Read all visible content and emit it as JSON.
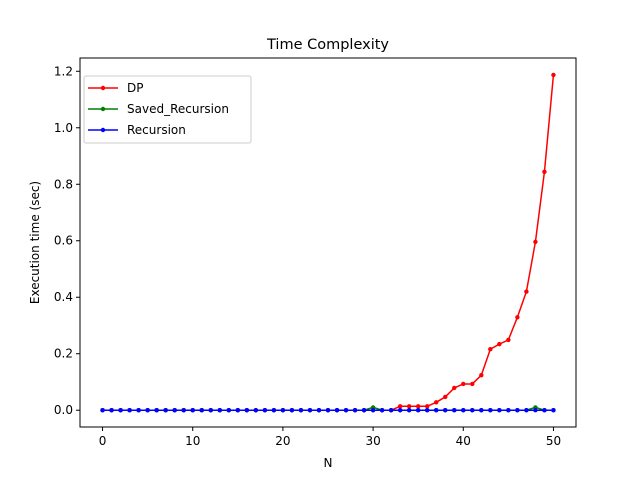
{
  "chart_data": {
    "type": "line",
    "title": "Time Complexity",
    "xlabel": "N",
    "ylabel": "Execution time (sec)",
    "xlim": [
      -2.5,
      52.5
    ],
    "ylim": [
      -0.0594,
      1.247
    ],
    "xticks": [
      0,
      10,
      20,
      30,
      40,
      50
    ],
    "xtick_labels": [
      "0",
      "10",
      "20",
      "30",
      "40",
      "50"
    ],
    "yticks": [
      0.0,
      0.2,
      0.4,
      0.6,
      0.8,
      1.0,
      1.2
    ],
    "ytick_labels": [
      "0.0",
      "0.2",
      "0.4",
      "0.6",
      "0.8",
      "1.0",
      "1.2"
    ],
    "grid": false,
    "legend_position": "upper-left",
    "x": [
      0,
      1,
      2,
      3,
      4,
      5,
      6,
      7,
      8,
      9,
      10,
      11,
      12,
      13,
      14,
      15,
      16,
      17,
      18,
      19,
      20,
      21,
      22,
      23,
      24,
      25,
      26,
      27,
      28,
      29,
      30,
      31,
      32,
      33,
      34,
      35,
      36,
      37,
      38,
      39,
      40,
      41,
      42,
      43,
      44,
      45,
      46,
      47,
      48,
      49,
      50
    ],
    "series": [
      {
        "name": "DP",
        "color": "#ff0000",
        "values": [
          0,
          0,
          0,
          0,
          0,
          0,
          0,
          0,
          0,
          0,
          0,
          0,
          0,
          0,
          0,
          0,
          0,
          0,
          0,
          0,
          0,
          0,
          0,
          0,
          0,
          0,
          0,
          0,
          0,
          0,
          0,
          0,
          0,
          0.014,
          0.014,
          0.014,
          0.014,
          0.028,
          0.047,
          0.079,
          0.093,
          0.093,
          0.124,
          0.216,
          0.234,
          0.249,
          0.329,
          0.42,
          0.596,
          0.844,
          1.187
        ]
      },
      {
        "name": "Saved_Recursion",
        "color": "#008000",
        "values": [
          0,
          0,
          0,
          0,
          0,
          0,
          0,
          0,
          0,
          0,
          0,
          0,
          0,
          0,
          0,
          0,
          0,
          0,
          0,
          0,
          0,
          0,
          0,
          0,
          0,
          0,
          0,
          0,
          0,
          0,
          0.01,
          0,
          0,
          0,
          0,
          0,
          0,
          0,
          0,
          0,
          0,
          0,
          0,
          0,
          0,
          0,
          0,
          0,
          0.01,
          0,
          0
        ]
      },
      {
        "name": "Recursion",
        "color": "#0000ff",
        "values": [
          0,
          0,
          0,
          0,
          0,
          0,
          0,
          0,
          0,
          0,
          0,
          0,
          0,
          0,
          0,
          0,
          0,
          0,
          0,
          0,
          0,
          0,
          0,
          0,
          0,
          0,
          0,
          0,
          0,
          0,
          0,
          0,
          0,
          0,
          0,
          0,
          0,
          0,
          0,
          0,
          0,
          0,
          0,
          0,
          0,
          0,
          0,
          0,
          0,
          0,
          0
        ]
      }
    ]
  }
}
